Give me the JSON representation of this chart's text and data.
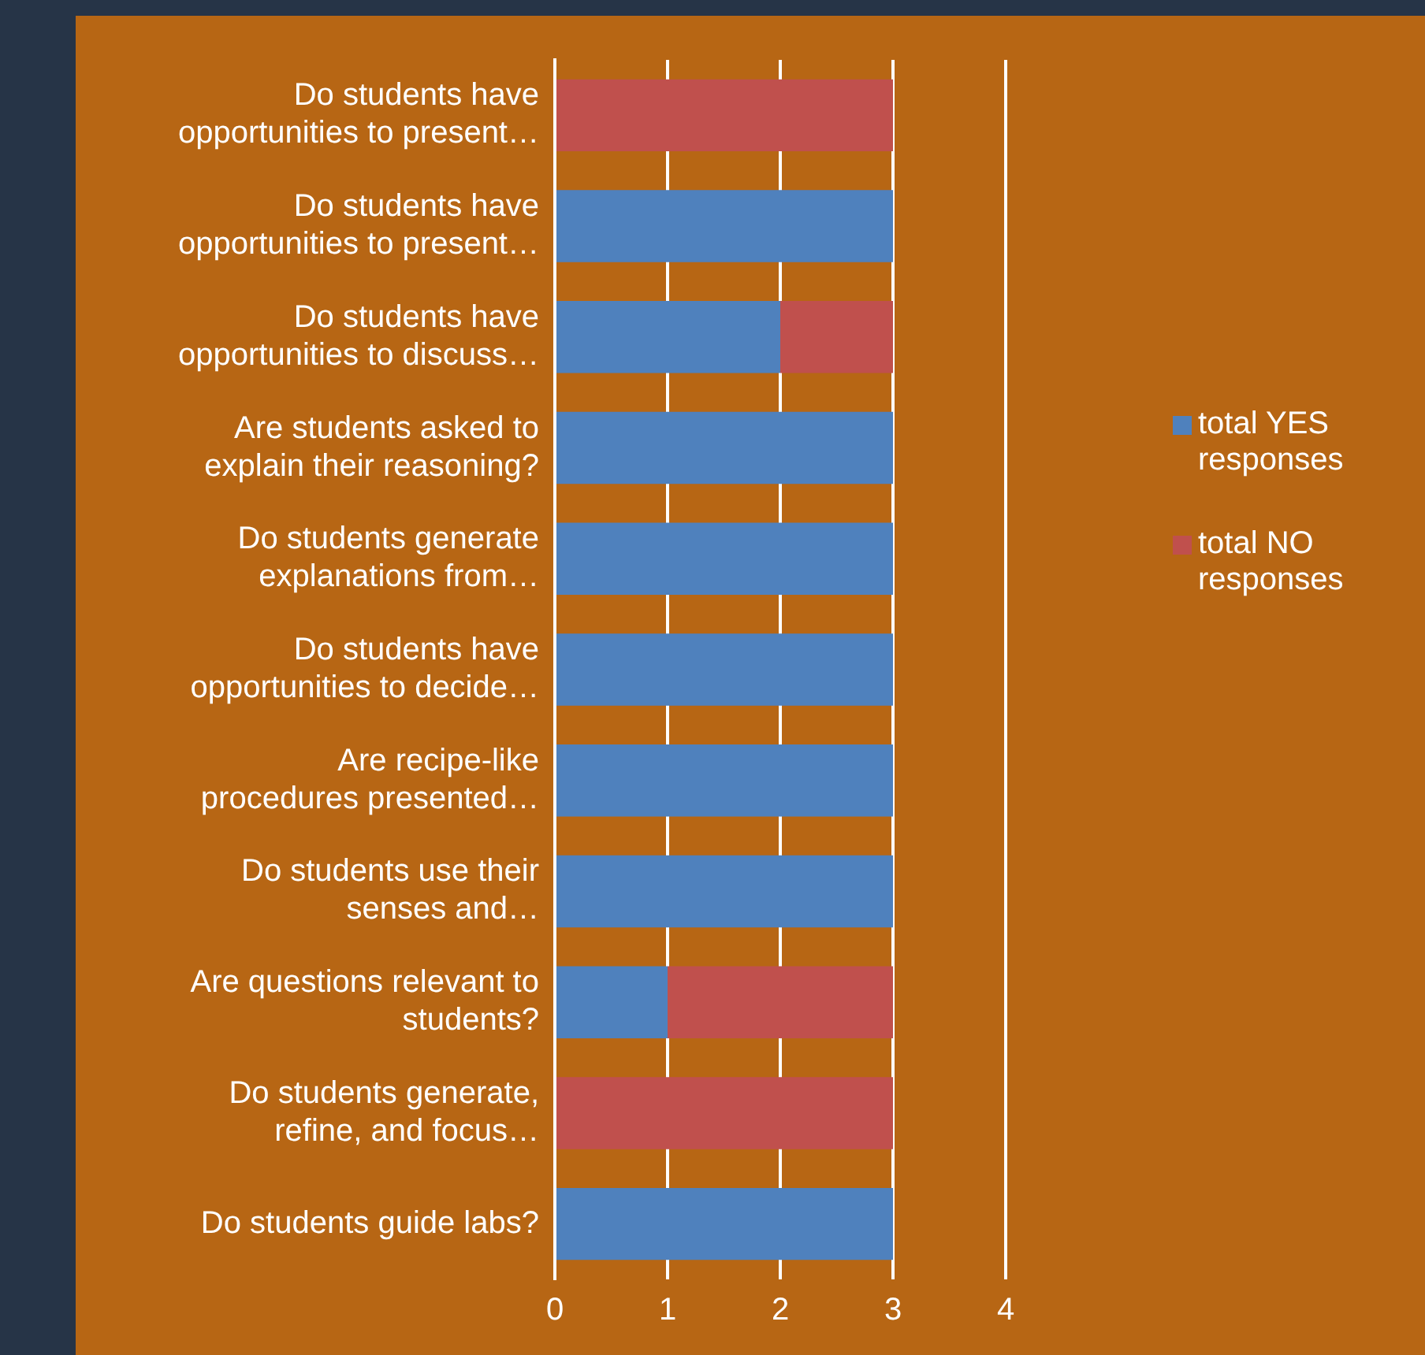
{
  "chart_data": {
    "type": "bar",
    "orientation": "horizontal",
    "stacked": true,
    "categories": [
      "Do students have opportunities to present…",
      "Do students have opportunities to present…",
      "Do students have opportunities to discuss…",
      "Are students asked to explain their reasoning?",
      "Do students generate explanations from…",
      "Do students have opportunities to decide…",
      "Are recipe-like procedures presented…",
      "Do students use their senses and…",
      "Are questions relevant to students?",
      "Do students generate, refine, and focus…",
      "Do students guide labs?"
    ],
    "series": [
      {
        "name": "total YES responses",
        "color": "#4f81bd",
        "values": [
          0,
          3,
          2,
          3,
          3,
          3,
          3,
          3,
          1,
          0,
          3
        ]
      },
      {
        "name": "total NO responses",
        "color": "#c0504d",
        "values": [
          3,
          0,
          1,
          0,
          0,
          0,
          0,
          0,
          2,
          3,
          0
        ]
      }
    ],
    "xlim": [
      0,
      4
    ],
    "xticks": [
      0,
      1,
      2,
      3,
      4
    ],
    "grid": "x",
    "legend": "right"
  }
}
